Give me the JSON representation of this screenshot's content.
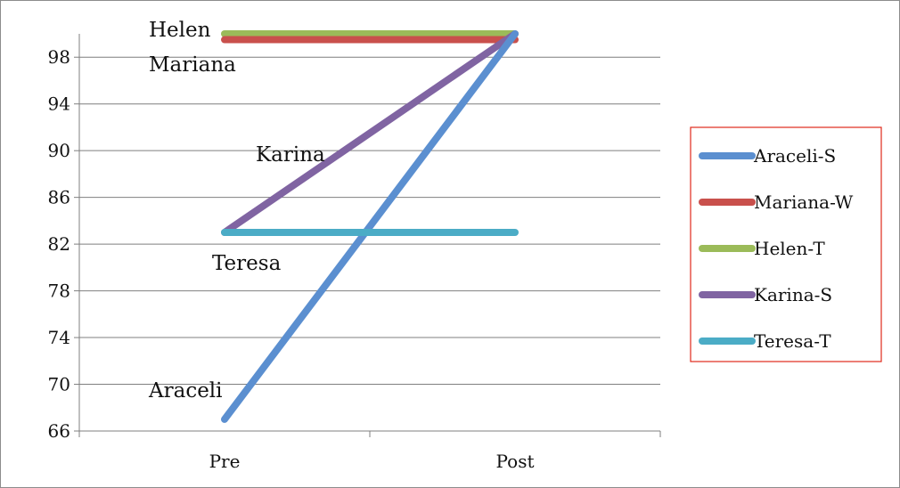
{
  "chart_data": {
    "type": "line",
    "title": "",
    "xlabel": "",
    "ylabel": "",
    "categories": [
      "Pre",
      "Post"
    ],
    "ylim": [
      66,
      100
    ],
    "yticks": [
      66,
      70,
      74,
      78,
      82,
      86,
      90,
      94,
      98
    ],
    "grid": true,
    "legend_position": "right",
    "series": [
      {
        "name": "Araceli-S",
        "values": [
          67,
          100
        ],
        "color": "#5b8fd0"
      },
      {
        "name": "Mariana-W",
        "values": [
          99.5,
          99.5
        ],
        "color": "#c9504c"
      },
      {
        "name": "Helen-T",
        "values": [
          100,
          100
        ],
        "color": "#9bbb59"
      },
      {
        "name": "Karina-S",
        "values": [
          83,
          100
        ],
        "color": "#8064a2"
      },
      {
        "name": "Teresa-T",
        "values": [
          83,
          83
        ],
        "color": "#4bacc6"
      }
    ],
    "annotations": [
      {
        "text": "Helen"
      },
      {
        "text": "Mariana"
      },
      {
        "text": "Karina"
      },
      {
        "text": "Teresa"
      },
      {
        "text": "Araceli"
      }
    ],
    "legend_border_color": "#e02a1c"
  }
}
